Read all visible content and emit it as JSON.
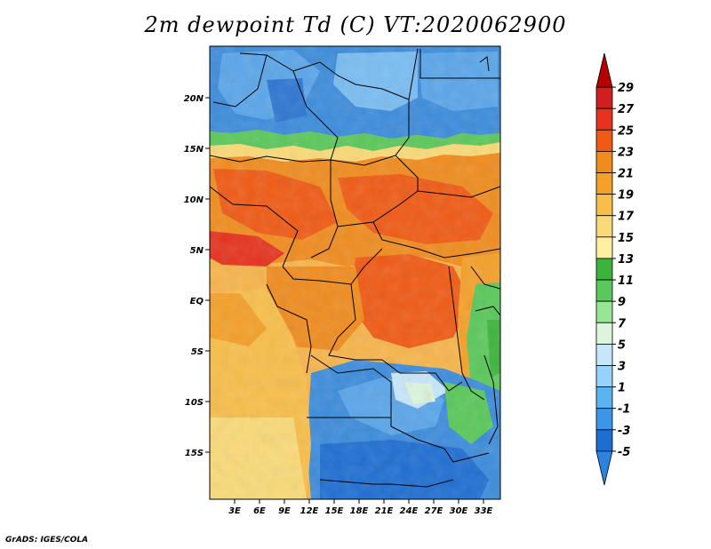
{
  "title": "2m dewpoint Td (C) VT:2020062900",
  "credit": "GrADS: IGES/COLA",
  "latitude_labels": [
    "20N",
    "15N",
    "10N",
    "5N",
    "EQ",
    "5S",
    "10S",
    "15S"
  ],
  "longitude_labels": [
    "3E",
    "6E",
    "9E",
    "12E",
    "15E",
    "18E",
    "21E",
    "24E",
    "27E",
    "30E",
    "33E"
  ],
  "colorbar": {
    "labels": [
      "29",
      "27",
      "25",
      "23",
      "21",
      "19",
      "17",
      "15",
      "13",
      "11",
      "9",
      "7",
      "5",
      "3",
      "1",
      "-1",
      "-3",
      "-5"
    ],
    "colors": [
      "#b40000",
      "#d21e1e",
      "#e6321e",
      "#f05a14",
      "#f08c1e",
      "#f5a028",
      "#f8be4a",
      "#fada78",
      "#fff0a0",
      "#3cb43c",
      "#5ac85a",
      "#96e696",
      "#dcf5dc",
      "#c8e6fa",
      "#96d2fa",
      "#5ab4f0",
      "#3c96e6",
      "#1e6ed2",
      "#2c82e0"
    ]
  }
}
